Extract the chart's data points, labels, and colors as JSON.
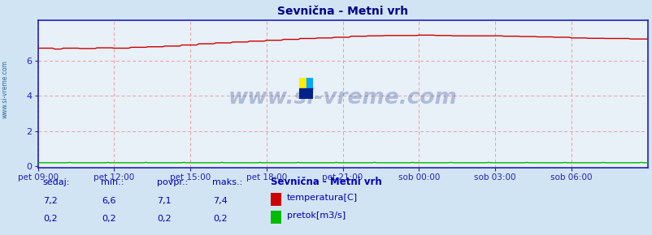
{
  "title": "Sevnična - Metni vrh",
  "bg_color": "#d0e4f4",
  "plot_bg_color": "#e8f0f8",
  "grid_color": "#e8a0a0",
  "border_color": "#2222bb",
  "temp_color": "#cc0000",
  "flow_color": "#00bb00",
  "watermark_text": "www.si-vreme.com",
  "watermark_color": "#1a3a8a",
  "yticks": [
    0,
    2,
    4,
    6
  ],
  "ylim": [
    -0.1,
    8.3
  ],
  "xlim": [
    0,
    288
  ],
  "xtick_labels": [
    "pet 09:00",
    "pet 12:00",
    "pet 15:00",
    "pet 18:00",
    "pet 21:00",
    "sob 00:00",
    "sob 03:00",
    "sob 06:00"
  ],
  "xtick_positions": [
    0,
    36,
    72,
    108,
    144,
    180,
    216,
    252
  ],
  "left_label": "www.si-vreme.com",
  "left_label_color": "#336699",
  "footer_labels": [
    "sedaj:",
    "min.:",
    "povpr.:",
    "maks.:"
  ],
  "footer_temp": [
    "7,2",
    "6,6",
    "7,1",
    "7,4"
  ],
  "footer_flow": [
    "0,2",
    "0,2",
    "0,2",
    "0,2"
  ],
  "legend_title": "Sevnična - Metni vrh",
  "legend_temp": "temperatura[C]",
  "legend_flow": "pretok[m3/s]",
  "title_color": "#000088",
  "footer_color": "#0000bb",
  "footer_header_color": "#0000bb"
}
